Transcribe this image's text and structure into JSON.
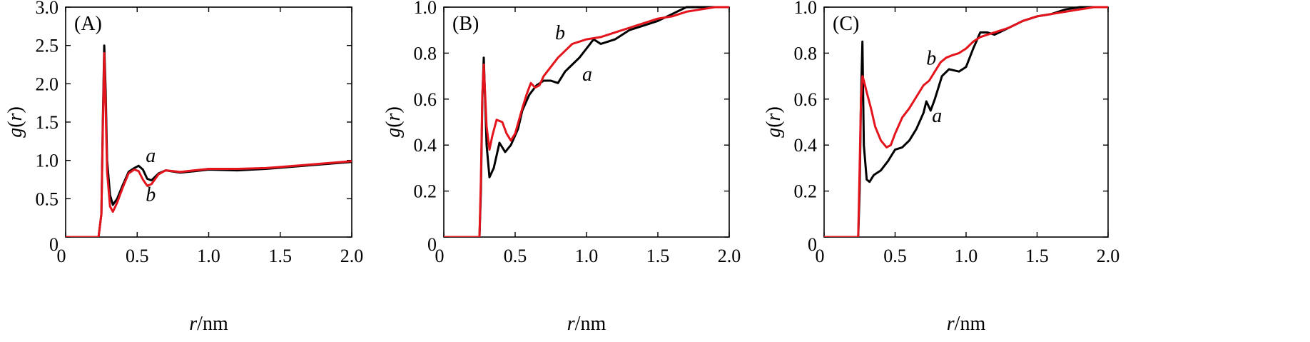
{
  "colors": {
    "series_a": "#000000",
    "series_b": "#e3141c",
    "axes": "#000000"
  },
  "chart_data": [
    {
      "type": "line",
      "panel_label": "(A)",
      "xlabel": {
        "italic": "r",
        "unit": "/nm"
      },
      "ylabel": {
        "pre": "g(",
        "italic": "r",
        "post": ")"
      },
      "xlim": [
        0,
        2.0
      ],
      "ylim": [
        0,
        3.0
      ],
      "xticks": [
        0,
        0.5,
        1.0,
        1.5,
        2.0
      ],
      "xtick_labels": [
        "0",
        "0.5",
        "1.0",
        "1.5",
        "2.0"
      ],
      "yticks": [
        0,
        0.5,
        1.0,
        1.5,
        2.0,
        2.5,
        3.0
      ],
      "ytick_labels": [
        "0",
        "0.5",
        "1.0",
        "1.5",
        "2.0",
        "2.5",
        "3.0"
      ],
      "grid": false,
      "series": [
        {
          "name": "a",
          "color": "#000000",
          "x": [
            0,
            0.23,
            0.25,
            0.26,
            0.27,
            0.28,
            0.29,
            0.31,
            0.33,
            0.36,
            0.4,
            0.44,
            0.48,
            0.51,
            0.54,
            0.57,
            0.6,
            0.65,
            0.7,
            0.8,
            0.9,
            1.0,
            1.2,
            1.4,
            1.6,
            1.8,
            2.0
          ],
          "y": [
            0,
            0,
            0.3,
            1.5,
            2.5,
            1.9,
            1.0,
            0.55,
            0.42,
            0.5,
            0.68,
            0.85,
            0.9,
            0.93,
            0.88,
            0.76,
            0.74,
            0.83,
            0.87,
            0.84,
            0.86,
            0.88,
            0.87,
            0.89,
            0.92,
            0.95,
            0.98
          ]
        },
        {
          "name": "b",
          "color": "#e3141c",
          "x": [
            0,
            0.23,
            0.25,
            0.26,
            0.27,
            0.28,
            0.29,
            0.31,
            0.33,
            0.36,
            0.4,
            0.44,
            0.48,
            0.51,
            0.54,
            0.57,
            0.6,
            0.65,
            0.7,
            0.8,
            0.9,
            1.0,
            1.2,
            1.4,
            1.6,
            1.8,
            2.0
          ],
          "y": [
            0,
            0,
            0.3,
            1.4,
            2.4,
            1.7,
            0.85,
            0.4,
            0.33,
            0.45,
            0.65,
            0.83,
            0.88,
            0.86,
            0.75,
            0.67,
            0.69,
            0.82,
            0.87,
            0.85,
            0.87,
            0.89,
            0.89,
            0.9,
            0.93,
            0.96,
            0.99
          ]
        }
      ],
      "annotations": [
        {
          "text": "a",
          "x": 0.56,
          "y": 0.98
        },
        {
          "text": "b",
          "x": 0.56,
          "y": 0.47
        }
      ]
    },
    {
      "type": "line",
      "panel_label": "(B)",
      "xlabel": {
        "italic": "r",
        "unit": "/nm"
      },
      "ylabel": {
        "pre": "g(",
        "italic": "r",
        "post": ")"
      },
      "xlim": [
        0,
        2.0
      ],
      "ylim": [
        0,
        1.0
      ],
      "xticks": [
        0,
        0.5,
        1.0,
        1.5,
        2.0
      ],
      "xtick_labels": [
        "0",
        "0.5",
        "1.0",
        "1.5",
        "2.0"
      ],
      "yticks": [
        0,
        0.2,
        0.4,
        0.6,
        0.8,
        1.0
      ],
      "ytick_labels": [
        "0",
        "0.2",
        "0.4",
        "0.6",
        "0.8",
        "1.0"
      ],
      "grid": false,
      "series": [
        {
          "name": "a",
          "color": "#000000",
          "x": [
            0,
            0.25,
            0.26,
            0.27,
            0.28,
            0.3,
            0.32,
            0.35,
            0.39,
            0.43,
            0.47,
            0.52,
            0.55,
            0.6,
            0.65,
            0.7,
            0.75,
            0.8,
            0.85,
            0.9,
            0.95,
            1.0,
            1.05,
            1.1,
            1.15,
            1.2,
            1.3,
            1.4,
            1.5,
            1.6,
            1.7,
            1.8,
            1.9,
            2.0
          ],
          "y": [
            0,
            0,
            0.2,
            0.6,
            0.78,
            0.4,
            0.26,
            0.3,
            0.41,
            0.37,
            0.4,
            0.47,
            0.55,
            0.62,
            0.66,
            0.68,
            0.68,
            0.67,
            0.72,
            0.75,
            0.78,
            0.82,
            0.86,
            0.84,
            0.85,
            0.86,
            0.9,
            0.92,
            0.94,
            0.97,
            1.0,
            1.0,
            1.0,
            1.0
          ]
        },
        {
          "name": "b",
          "color": "#e3141c",
          "x": [
            0,
            0.25,
            0.26,
            0.27,
            0.28,
            0.3,
            0.32,
            0.34,
            0.37,
            0.41,
            0.44,
            0.47,
            0.5,
            0.55,
            0.58,
            0.61,
            0.64,
            0.67,
            0.7,
            0.75,
            0.8,
            0.85,
            0.9,
            0.95,
            1.0,
            1.1,
            1.2,
            1.3,
            1.4,
            1.5,
            1.6,
            1.7,
            1.8,
            1.9,
            2.0
          ],
          "y": [
            0,
            0,
            0.25,
            0.62,
            0.75,
            0.48,
            0.38,
            0.44,
            0.51,
            0.5,
            0.45,
            0.42,
            0.45,
            0.56,
            0.62,
            0.67,
            0.65,
            0.66,
            0.7,
            0.74,
            0.78,
            0.81,
            0.84,
            0.85,
            0.86,
            0.87,
            0.89,
            0.91,
            0.93,
            0.95,
            0.96,
            0.98,
            0.99,
            1.0,
            1.0
          ]
        }
      ],
      "annotations": [
        {
          "text": "b",
          "x": 0.78,
          "y": 0.86
        },
        {
          "text": "a",
          "x": 0.97,
          "y": 0.68
        }
      ]
    },
    {
      "type": "line",
      "panel_label": "(C)",
      "xlabel": {
        "italic": "r",
        "unit": "/nm"
      },
      "ylabel": {
        "pre": "g(",
        "italic": "r",
        "post": ")"
      },
      "xlim": [
        0,
        2.0
      ],
      "ylim": [
        0,
        1.0
      ],
      "xticks": [
        0,
        0.5,
        1.0,
        1.5,
        2.0
      ],
      "xtick_labels": [
        "0",
        "0.5",
        "1.0",
        "1.5",
        "2.0"
      ],
      "yticks": [
        0,
        0.2,
        0.4,
        0.6,
        0.8,
        1.0
      ],
      "ytick_labels": [
        "0",
        "0.2",
        "0.4",
        "0.6",
        "0.8",
        "1.0"
      ],
      "grid": false,
      "series": [
        {
          "name": "a",
          "color": "#000000",
          "x": [
            0,
            0.24,
            0.25,
            0.26,
            0.27,
            0.28,
            0.3,
            0.32,
            0.35,
            0.4,
            0.45,
            0.5,
            0.55,
            0.6,
            0.65,
            0.7,
            0.72,
            0.75,
            0.78,
            0.83,
            0.88,
            0.95,
            1.0,
            1.05,
            1.1,
            1.15,
            1.2,
            1.3,
            1.4,
            1.5,
            1.6,
            1.7,
            1.8,
            1.9,
            2.0
          ],
          "y": [
            0,
            0,
            0.2,
            0.6,
            0.85,
            0.4,
            0.25,
            0.24,
            0.27,
            0.29,
            0.33,
            0.38,
            0.39,
            0.42,
            0.47,
            0.54,
            0.59,
            0.55,
            0.6,
            0.7,
            0.73,
            0.72,
            0.74,
            0.82,
            0.89,
            0.89,
            0.88,
            0.91,
            0.94,
            0.96,
            0.97,
            0.99,
            1.0,
            1.0,
            1.0
          ]
        },
        {
          "name": "b",
          "color": "#e3141c",
          "x": [
            0,
            0.24,
            0.25,
            0.26,
            0.27,
            0.28,
            0.3,
            0.33,
            0.36,
            0.4,
            0.44,
            0.47,
            0.5,
            0.55,
            0.6,
            0.65,
            0.7,
            0.74,
            0.78,
            0.82,
            0.86,
            0.9,
            0.95,
            1.0,
            1.05,
            1.1,
            1.15,
            1.2,
            1.3,
            1.4,
            1.5,
            1.6,
            1.7,
            1.8,
            1.9,
            2.0
          ],
          "y": [
            0,
            0,
            0.3,
            0.6,
            0.7,
            0.68,
            0.63,
            0.56,
            0.48,
            0.42,
            0.39,
            0.4,
            0.45,
            0.52,
            0.56,
            0.61,
            0.66,
            0.68,
            0.72,
            0.76,
            0.78,
            0.79,
            0.8,
            0.82,
            0.85,
            0.87,
            0.88,
            0.89,
            0.91,
            0.94,
            0.96,
            0.97,
            0.98,
            0.99,
            1.0,
            1.0
          ]
        }
      ],
      "annotations": [
        {
          "text": "b",
          "x": 0.72,
          "y": 0.75
        },
        {
          "text": "a",
          "x": 0.76,
          "y": 0.5
        }
      ]
    }
  ]
}
